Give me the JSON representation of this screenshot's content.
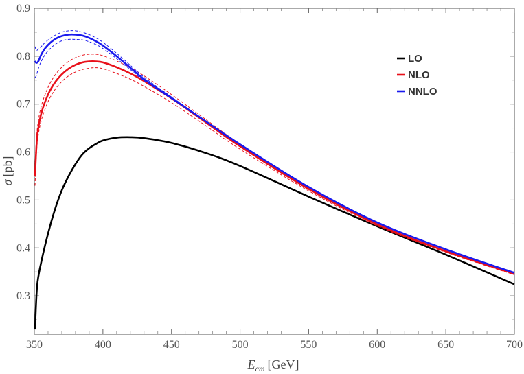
{
  "chart_data": {
    "type": "line",
    "title": "",
    "xlabel_main": "E",
    "xlabel_sub": "cm",
    "xlabel_unit": "[GeV]",
    "ylabel_symbol": "σ",
    "ylabel_unit": "[pb]",
    "xlim": [
      350,
      700
    ],
    "ylim": [
      0.22,
      0.9
    ],
    "xticks": [
      350,
      400,
      450,
      500,
      550,
      600,
      650,
      700
    ],
    "yticks": [
      0.3,
      0.4,
      0.5,
      0.6,
      0.7,
      0.8,
      0.9
    ],
    "grid": false,
    "legend_position": "top-right",
    "series": [
      {
        "name": "LO",
        "color": "#000000",
        "style": "solid",
        "x": [
          350.5,
          352,
          355,
          360,
          365,
          370,
          375,
          380,
          385,
          390,
          395,
          400,
          410,
          420,
          430,
          450,
          475,
          500,
          550,
          600,
          650,
          700
        ],
        "y": [
          0.23,
          0.32,
          0.37,
          0.43,
          0.48,
          0.52,
          0.55,
          0.575,
          0.595,
          0.608,
          0.617,
          0.624,
          0.63,
          0.631,
          0.629,
          0.619,
          0.598,
          0.571,
          0.507,
          0.445,
          0.386,
          0.324
        ]
      },
      {
        "name": "NLO",
        "color": "#e8101a",
        "style": "solid",
        "x": [
          350.5,
          352,
          355,
          360,
          365,
          370,
          375,
          380,
          385,
          390,
          395,
          400,
          410,
          420,
          430,
          450,
          475,
          500,
          550,
          600,
          650,
          700
        ],
        "y": [
          0.55,
          0.63,
          0.68,
          0.72,
          0.745,
          0.762,
          0.774,
          0.782,
          0.787,
          0.789,
          0.789,
          0.787,
          0.777,
          0.764,
          0.748,
          0.712,
          0.662,
          0.612,
          0.523,
          0.449,
          0.393,
          0.346
        ]
      },
      {
        "name": "NLO upper",
        "color": "#e8101a",
        "style": "dashed",
        "x": [
          350.5,
          352,
          355,
          360,
          365,
          370,
          375,
          380,
          385,
          390,
          395,
          400,
          410,
          420,
          430,
          450,
          475,
          500,
          550,
          600,
          650,
          700
        ],
        "y": [
          0.57,
          0.645,
          0.695,
          0.735,
          0.76,
          0.777,
          0.789,
          0.797,
          0.802,
          0.804,
          0.804,
          0.801,
          0.79,
          0.776,
          0.759,
          0.72,
          0.668,
          0.617,
          0.526,
          0.451,
          0.394,
          0.347
        ]
      },
      {
        "name": "NLO lower",
        "color": "#e8101a",
        "style": "dashed",
        "x": [
          350.5,
          352,
          355,
          360,
          365,
          370,
          375,
          380,
          385,
          390,
          395,
          400,
          410,
          420,
          430,
          450,
          475,
          500,
          550,
          600,
          650,
          700
        ],
        "y": [
          0.53,
          0.615,
          0.665,
          0.705,
          0.73,
          0.747,
          0.759,
          0.767,
          0.772,
          0.775,
          0.776,
          0.774,
          0.764,
          0.752,
          0.737,
          0.703,
          0.655,
          0.606,
          0.519,
          0.446,
          0.391,
          0.344
        ]
      },
      {
        "name": "NNLO",
        "color": "#1a1aee",
        "style": "solid",
        "x": [
          350.5,
          351.5,
          353,
          355,
          358,
          362,
          366,
          370,
          375,
          380,
          385,
          390,
          395,
          400,
          410,
          420,
          430,
          450,
          475,
          500,
          550,
          600,
          650,
          700
        ],
        "y": [
          0.79,
          0.786,
          0.79,
          0.803,
          0.817,
          0.829,
          0.837,
          0.842,
          0.845,
          0.845,
          0.843,
          0.838,
          0.831,
          0.822,
          0.8,
          0.776,
          0.752,
          0.713,
          0.664,
          0.616,
          0.527,
          0.453,
          0.397,
          0.348
        ]
      },
      {
        "name": "NNLO upper",
        "color": "#1a1aee",
        "style": "dashed",
        "x": [
          350.5,
          351.5,
          353,
          355,
          358,
          362,
          366,
          370,
          375,
          380,
          385,
          390,
          395,
          400,
          410,
          420,
          430,
          450,
          475,
          500,
          550,
          600,
          650,
          700
        ],
        "y": [
          0.82,
          0.812,
          0.815,
          0.82,
          0.829,
          0.838,
          0.845,
          0.85,
          0.853,
          0.853,
          0.85,
          0.845,
          0.838,
          0.829,
          0.806,
          0.781,
          0.756,
          0.715,
          0.665,
          0.617,
          0.528,
          0.454,
          0.397,
          0.349
        ]
      },
      {
        "name": "NNLO lower",
        "color": "#1a1aee",
        "style": "dashed",
        "x": [
          350.5,
          351.5,
          353,
          355,
          358,
          362,
          366,
          370,
          375,
          380,
          385,
          390,
          395,
          400,
          410,
          420,
          430,
          450,
          475,
          500,
          550,
          600,
          650,
          700
        ],
        "y": [
          0.755,
          0.76,
          0.775,
          0.789,
          0.804,
          0.817,
          0.826,
          0.832,
          0.835,
          0.835,
          0.834,
          0.83,
          0.824,
          0.816,
          0.795,
          0.772,
          0.749,
          0.711,
          0.663,
          0.615,
          0.526,
          0.452,
          0.396,
          0.347
        ]
      }
    ],
    "legend": [
      {
        "label": "LO",
        "color": "#000000"
      },
      {
        "label": "NLO",
        "color": "#e8101a"
      },
      {
        "label": "NNLO",
        "color": "#1a1aee"
      }
    ]
  }
}
